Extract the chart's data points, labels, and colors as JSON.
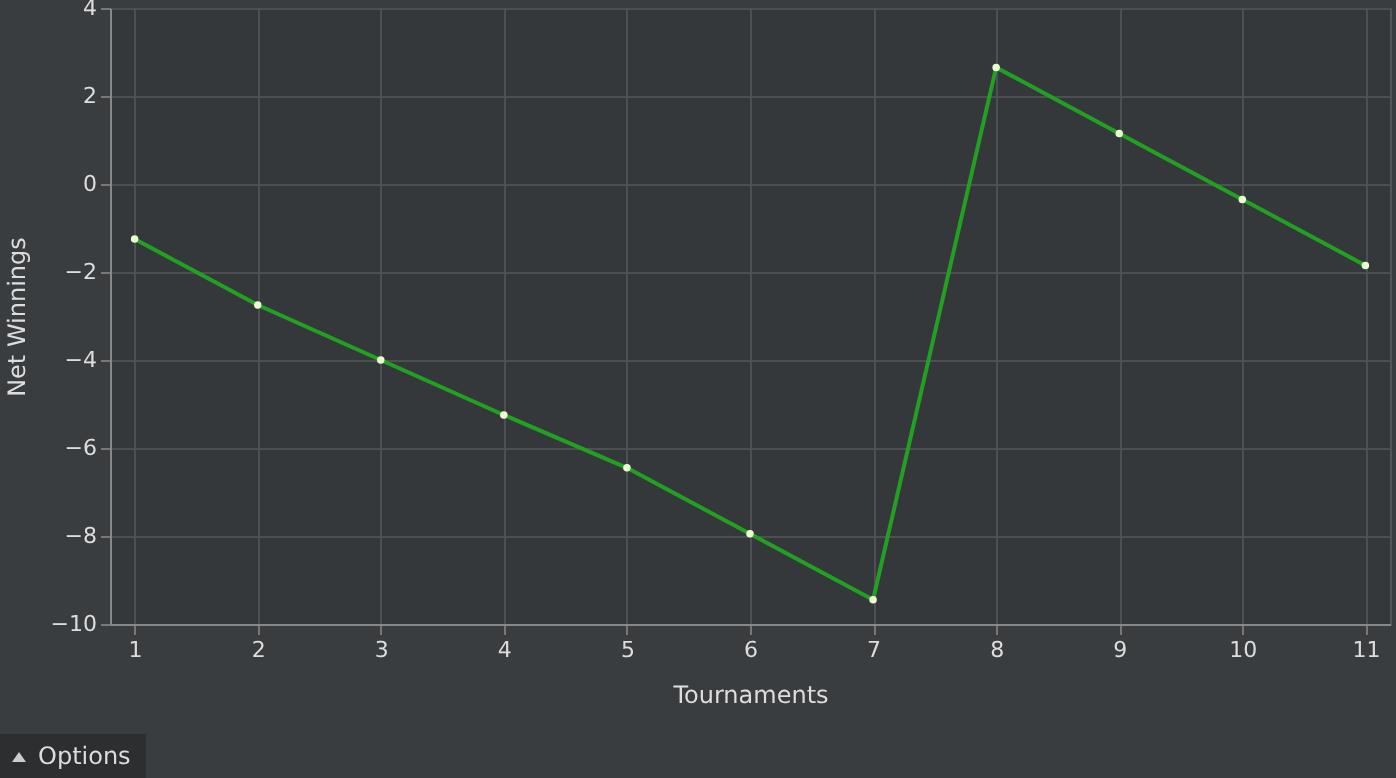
{
  "chart_data": {
    "type": "line",
    "xlabel": "Tournaments",
    "ylabel": "Net Winnings",
    "x": [
      1,
      2,
      3,
      4,
      5,
      6,
      7,
      8,
      9,
      10,
      11
    ],
    "series": [
      {
        "color": "#22a022",
        "values": [
          -1.25,
          -2.75,
          -4,
          -5.25,
          -6.45,
          -7.95,
          -9.45,
          2.65,
          1.15,
          -0.35,
          -1.85
        ]
      }
    ],
    "xlim": [
      0.8,
      11.2
    ],
    "xticks": [
      1,
      2,
      3,
      4,
      5,
      6,
      7,
      8,
      9,
      10,
      11
    ],
    "ylim": [
      -10,
      4
    ],
    "yticks": [
      -10,
      -8,
      -6,
      -4,
      -2,
      0,
      2,
      4
    ],
    "grid": true,
    "marker": "circle",
    "line_style": "solid",
    "annotations": [
      "Options"
    ]
  }
}
